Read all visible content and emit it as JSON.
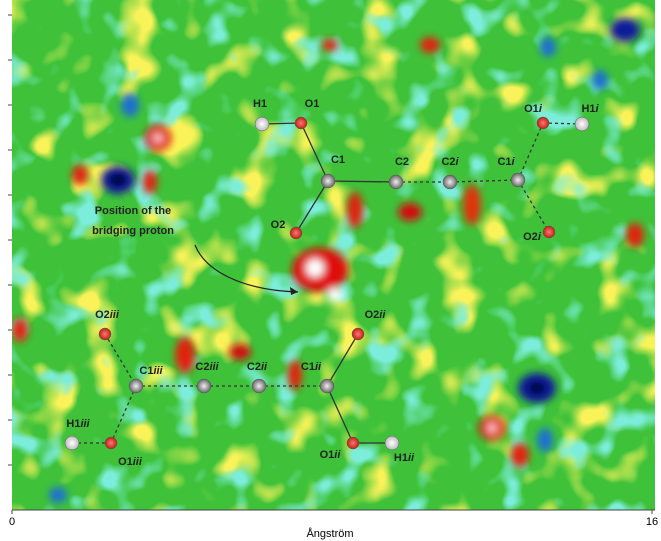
{
  "atoms": [
    {
      "label": "H1"
    },
    {
      "label": "O1"
    },
    {
      "label": "C1"
    },
    {
      "label": "C2"
    },
    {
      "label": "C2",
      "suffix": "i"
    },
    {
      "label": "C1",
      "suffix": "i"
    },
    {
      "label": "O1",
      "suffix": "i"
    },
    {
      "label": "H1",
      "suffix": "i"
    },
    {
      "label": "O2"
    },
    {
      "label": "O2",
      "suffix": "i"
    },
    {
      "label": "O2",
      "suffix": "iii"
    },
    {
      "label": "C1",
      "suffix": "iii"
    },
    {
      "label": "C2",
      "suffix": "iii"
    },
    {
      "label": "C2",
      "suffix": "ii"
    },
    {
      "label": "C1",
      "suffix": "ii"
    },
    {
      "label": "O2",
      "suffix": "ii"
    },
    {
      "label": "O1",
      "suffix": "ii"
    },
    {
      "label": "H1",
      "suffix": "ii"
    },
    {
      "label": "H1",
      "suffix": "iii"
    },
    {
      "label": "O1",
      "suffix": "iii"
    }
  ],
  "annotation": {
    "lines": [
      "Position of the",
      "bridging proton"
    ]
  },
  "axis": {
    "label": "Ångström",
    "start": "0",
    "end": "16"
  }
}
